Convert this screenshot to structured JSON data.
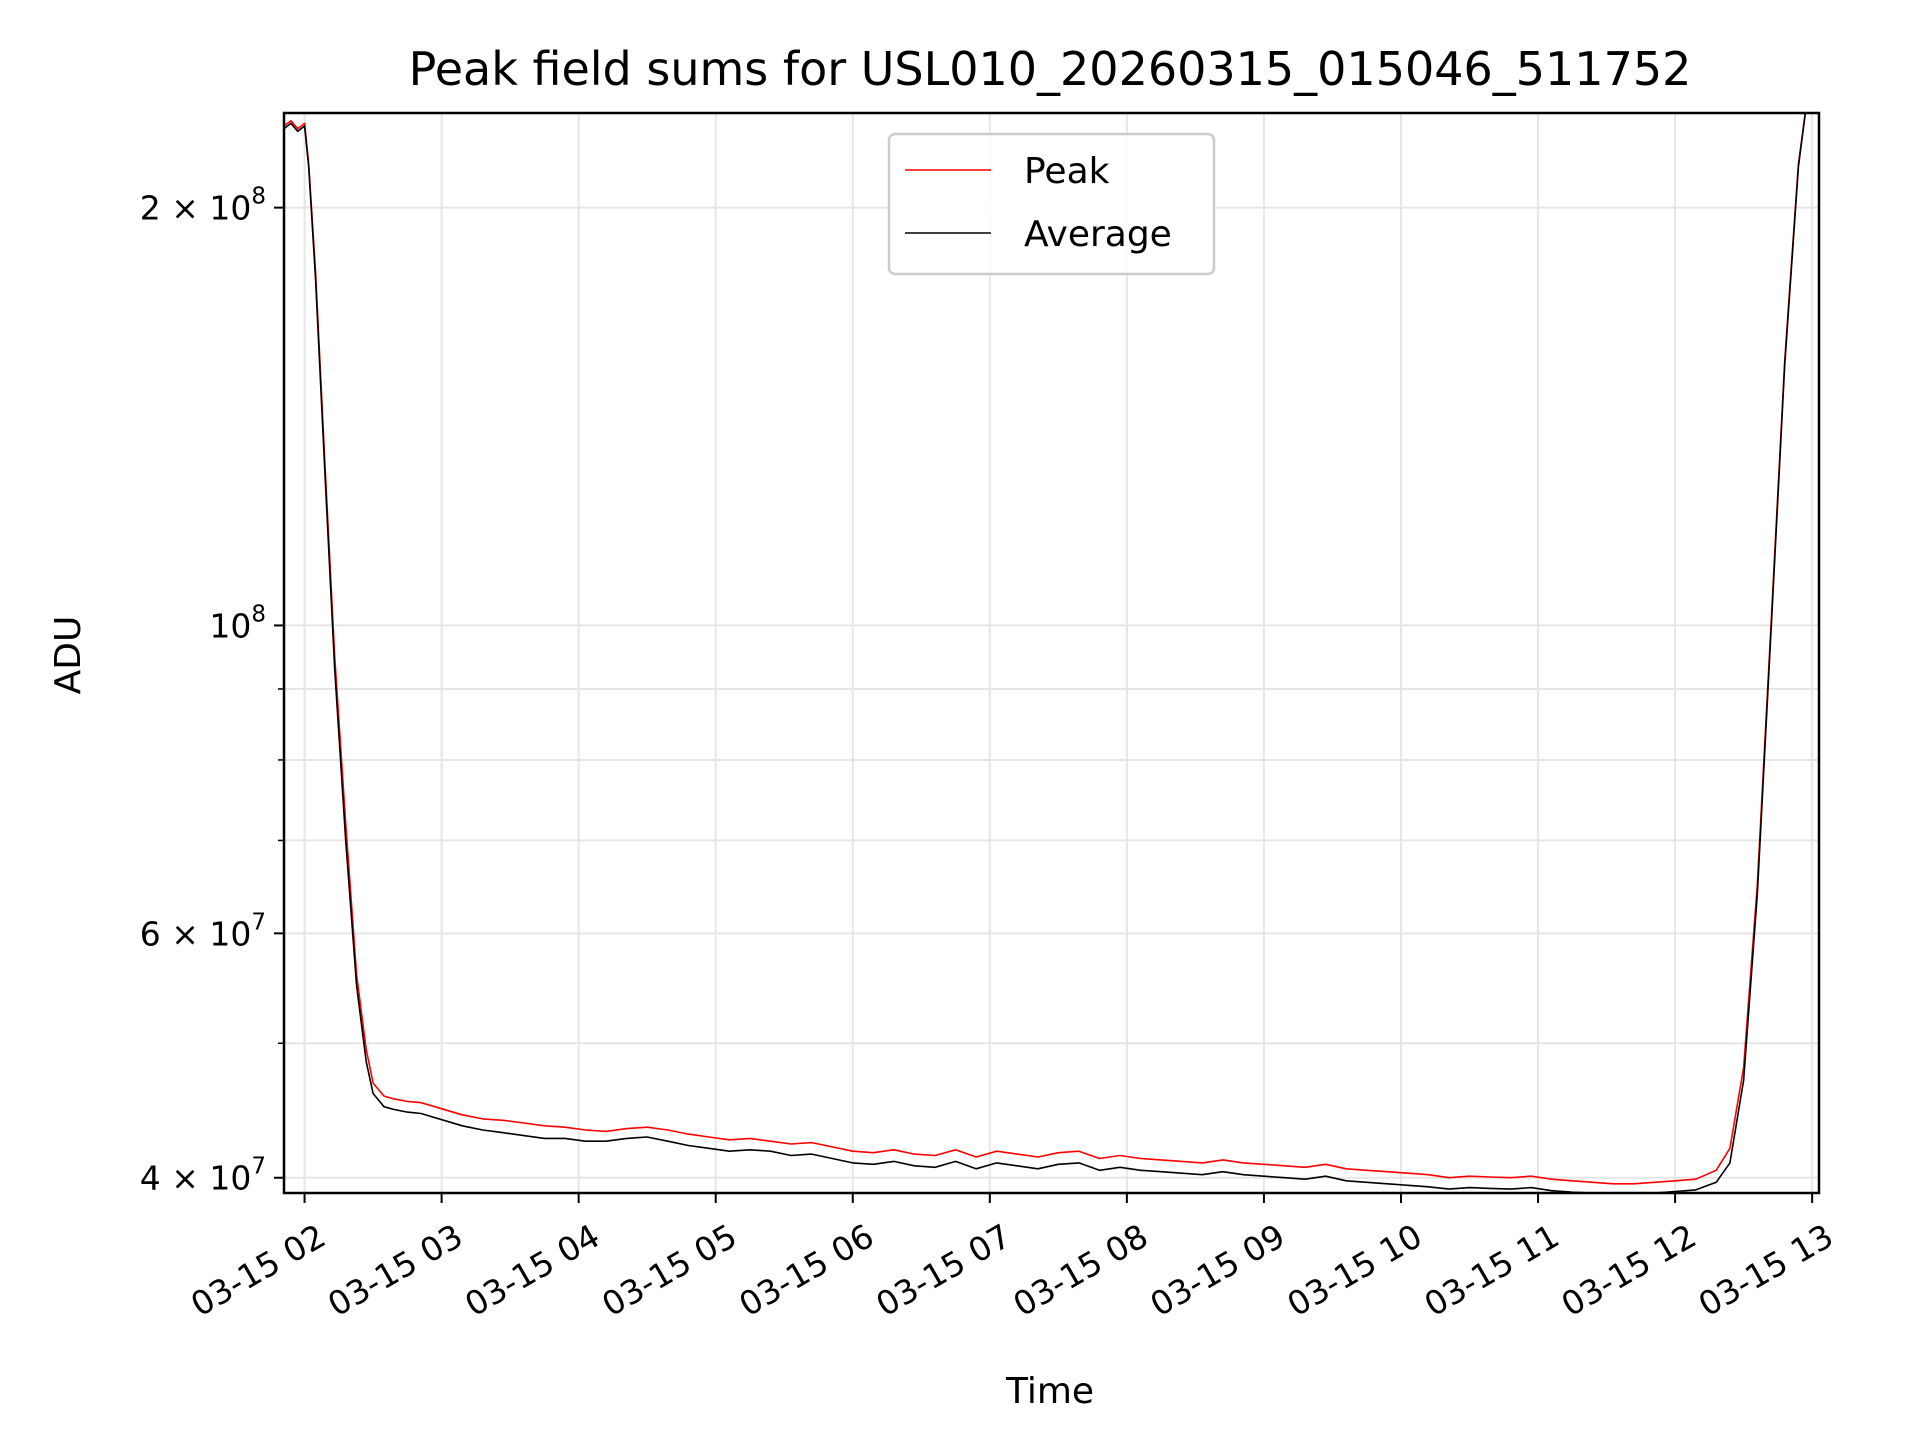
{
  "chart_data": {
    "type": "line",
    "title": "Peak field sums for USL010_20260315_015046_511752",
    "xlabel": "Time",
    "ylabel": "ADU",
    "yscale": "log",
    "ylim": [
      39000000,
      234000000
    ],
    "xlim_hours": [
      1.85,
      13.05
    ],
    "grid": true,
    "legend_position": "upper center",
    "x_ticks": [
      {
        "h": 2,
        "label": "03-15 02"
      },
      {
        "h": 3,
        "label": "03-15 03"
      },
      {
        "h": 4,
        "label": "03-15 04"
      },
      {
        "h": 5,
        "label": "03-15 05"
      },
      {
        "h": 6,
        "label": "03-15 06"
      },
      {
        "h": 7,
        "label": "03-15 07"
      },
      {
        "h": 8,
        "label": "03-15 08"
      },
      {
        "h": 9,
        "label": "03-15 09"
      },
      {
        "h": 10,
        "label": "03-15 10"
      },
      {
        "h": 11,
        "label": "03-15 11"
      },
      {
        "h": 12,
        "label": "03-15 12"
      },
      {
        "h": 13,
        "label": "03-15 13"
      }
    ],
    "y_major_ticks": [
      {
        "v": 40000000,
        "base": "4 × 10",
        "exp": "7"
      },
      {
        "v": 60000000,
        "base": "6 × 10",
        "exp": "7"
      },
      {
        "v": 100000000,
        "base": "10",
        "exp": "8"
      },
      {
        "v": 200000000,
        "base": "2 × 10",
        "exp": "8"
      }
    ],
    "y_minor_ticks": [
      50000000,
      70000000,
      80000000,
      90000000
    ],
    "series": [
      {
        "name": "Peak",
        "color": "#ff0000",
        "x_hours": [
          1.85,
          1.9,
          1.95,
          2.0,
          2.03,
          2.08,
          2.15,
          2.22,
          2.3,
          2.38,
          2.45,
          2.5,
          2.58,
          2.65,
          2.75,
          2.85,
          2.95,
          3.05,
          3.15,
          3.3,
          3.45,
          3.6,
          3.75,
          3.9,
          4.05,
          4.2,
          4.35,
          4.5,
          4.65,
          4.8,
          4.95,
          5.1,
          5.25,
          5.4,
          5.55,
          5.7,
          5.85,
          6.0,
          6.15,
          6.3,
          6.45,
          6.6,
          6.75,
          6.9,
          7.05,
          7.2,
          7.35,
          7.5,
          7.65,
          7.8,
          7.95,
          8.1,
          8.25,
          8.4,
          8.55,
          8.7,
          8.85,
          9.0,
          9.15,
          9.3,
          9.45,
          9.6,
          9.75,
          9.9,
          10.05,
          10.2,
          10.35,
          10.5,
          10.65,
          10.8,
          10.95,
          11.1,
          11.25,
          11.4,
          11.55,
          11.7,
          11.85,
          12.0,
          12.15,
          12.3,
          12.4,
          12.5,
          12.6,
          12.7,
          12.8,
          12.9,
          12.95
        ],
        "values": [
          229000000,
          231000000,
          228000000,
          230000000,
          215000000,
          180000000,
          130000000,
          95000000,
          72000000,
          56000000,
          49500000,
          46800000,
          45800000,
          45600000,
          45400000,
          45300000,
          45000000,
          44700000,
          44400000,
          44100000,
          44000000,
          43800000,
          43600000,
          43500000,
          43300000,
          43200000,
          43400000,
          43500000,
          43300000,
          43000000,
          42800000,
          42600000,
          42700000,
          42500000,
          42300000,
          42400000,
          42100000,
          41800000,
          41700000,
          41900000,
          41600000,
          41500000,
          41900000,
          41400000,
          41800000,
          41600000,
          41400000,
          41700000,
          41800000,
          41300000,
          41500000,
          41300000,
          41200000,
          41100000,
          41000000,
          41200000,
          41000000,
          40900000,
          40800000,
          40700000,
          40900000,
          40600000,
          40500000,
          40400000,
          40300000,
          40200000,
          40000000,
          40100000,
          40050000,
          40000000,
          40100000,
          39900000,
          39800000,
          39700000,
          39600000,
          39600000,
          39700000,
          39800000,
          39900000,
          40500000,
          42000000,
          48000000,
          65000000,
          100000000,
          155000000,
          215000000,
          236000000
        ]
      },
      {
        "name": "Average",
        "color": "#000000",
        "x_hours": [
          1.85,
          1.9,
          1.95,
          2.0,
          2.03,
          2.08,
          2.15,
          2.22,
          2.3,
          2.38,
          2.45,
          2.5,
          2.58,
          2.65,
          2.75,
          2.85,
          2.95,
          3.05,
          3.15,
          3.3,
          3.45,
          3.6,
          3.75,
          3.9,
          4.05,
          4.2,
          4.35,
          4.5,
          4.65,
          4.8,
          4.95,
          5.1,
          5.25,
          5.4,
          5.55,
          5.7,
          5.85,
          6.0,
          6.15,
          6.3,
          6.45,
          6.6,
          6.75,
          6.9,
          7.05,
          7.2,
          7.35,
          7.5,
          7.65,
          7.8,
          7.95,
          8.1,
          8.25,
          8.4,
          8.55,
          8.7,
          8.85,
          9.0,
          9.15,
          9.3,
          9.45,
          9.6,
          9.75,
          9.9,
          10.05,
          10.2,
          10.35,
          10.5,
          10.65,
          10.8,
          10.95,
          11.1,
          11.25,
          11.4,
          11.55,
          11.7,
          11.85,
          12.0,
          12.15,
          12.3,
          12.4,
          12.5,
          12.6,
          12.7,
          12.8,
          12.9,
          12.95
        ],
        "values": [
          228000000,
          230000000,
          227000000,
          229000000,
          214000000,
          178000000,
          128000000,
          93000000,
          70000000,
          55000000,
          48500000,
          46000000,
          45000000,
          44800000,
          44600000,
          44500000,
          44200000,
          43900000,
          43600000,
          43300000,
          43100000,
          42900000,
          42700000,
          42700000,
          42500000,
          42500000,
          42700000,
          42800000,
          42500000,
          42200000,
          42000000,
          41800000,
          41900000,
          41800000,
          41500000,
          41600000,
          41300000,
          41000000,
          40900000,
          41100000,
          40800000,
          40700000,
          41100000,
          40600000,
          41000000,
          40800000,
          40600000,
          40900000,
          41000000,
          40500000,
          40700000,
          40500000,
          40400000,
          40300000,
          40200000,
          40400000,
          40200000,
          40100000,
          40000000,
          39900000,
          40100000,
          39800000,
          39700000,
          39600000,
          39500000,
          39400000,
          39250000,
          39350000,
          39300000,
          39250000,
          39350000,
          39150000,
          39050000,
          38950000,
          38900000,
          38900000,
          39000000,
          39100000,
          39200000,
          39700000,
          41000000,
          47000000,
          64000000,
          99000000,
          154000000,
          214000000,
          235000000
        ]
      }
    ]
  }
}
